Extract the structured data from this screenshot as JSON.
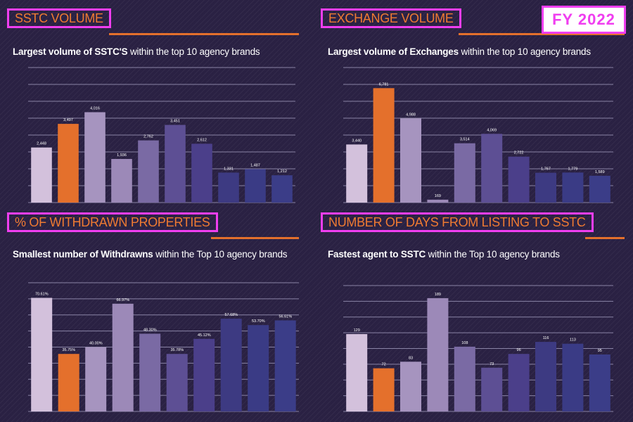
{
  "badge": "FY 2022",
  "colors": {
    "background": "#2a2143",
    "accent": "#e4702c",
    "highlight_frame": "#f03ef0",
    "bar_colors": [
      "#d3c1dc",
      "#e4702c",
      "#a694bf",
      "#9c89b8",
      "#7a6aa4",
      "#5d4f94",
      "#4b3f8a",
      "#3d3a82",
      "#3a3b85",
      "#3b3d88"
    ]
  },
  "panels": [
    {
      "title": "SSTC VOLUME",
      "subtitle_bold": "Largest volume of SSTC'S",
      "subtitle_rest": " within the top 10 agency brands"
    },
    {
      "title": "EXCHANGE VOLUME",
      "subtitle_bold": "Largest volume of Exchanges",
      "subtitle_rest": " within the top 10 agency brands"
    },
    {
      "title": "% OF WITHDRAWN PROPERTIES",
      "subtitle_bold": "Smallest number of Withdrawns",
      "subtitle_rest": " within the Top 10 agency brands"
    },
    {
      "title": "NUMBER OF DAYS FROM LISTING TO SSTC",
      "subtitle_bold": "Fastest agent to SSTC",
      "subtitle_rest": " within the Top 10 agency brands"
    }
  ],
  "chart_data": [
    {
      "type": "bar",
      "title": "SSTC VOLUME",
      "values": [
        2448,
        3497,
        4016,
        1936,
        2762,
        3451,
        2612,
        1331,
        1487,
        1212
      ],
      "labels": [
        "2,448",
        "3,497",
        "4,016",
        "1,936",
        "2,762",
        "3,451",
        "2,612",
        "1,331",
        "1,487",
        "1,212"
      ],
      "ylim": [
        0,
        6000
      ],
      "grid": true
    },
    {
      "type": "bar",
      "title": "EXCHANGE VOLUME",
      "values": [
        3440,
        6781,
        4988,
        169,
        3514,
        4069,
        2722,
        1767,
        1779,
        1589
      ],
      "labels": [
        "3,440",
        "6,781",
        "4,988",
        "169",
        "3,514",
        "4,069",
        "2,722",
        "1,767",
        "1,779",
        "1,589"
      ],
      "ylim": [
        0,
        8000
      ],
      "grid": true
    },
    {
      "type": "bar",
      "title": "% OF WITHDRAWN PROPERTIES",
      "values": [
        70.61,
        35.75,
        40.0,
        66.97,
        48.3,
        35.78,
        45.12,
        57.68,
        53.7,
        56.61
      ],
      "labels": [
        "70.61%",
        "35.75%",
        "40.00%",
        "66.97%",
        "48.30%",
        "35.78%",
        "45.12%",
        "57.68%",
        "53.70%",
        "56.61%"
      ],
      "ylim": [
        0,
        80
      ],
      "grid": true
    },
    {
      "type": "bar",
      "title": "NUMBER OF DAYS FROM LISTING TO SSTC",
      "values": [
        129,
        72,
        83,
        189,
        108,
        73,
        96,
        116,
        113,
        95
      ],
      "labels": [
        "129",
        "72",
        "83",
        "189",
        "108",
        "73",
        "96",
        "116",
        "113",
        "95"
      ],
      "ylim": [
        0,
        210
      ],
      "grid": true
    }
  ]
}
